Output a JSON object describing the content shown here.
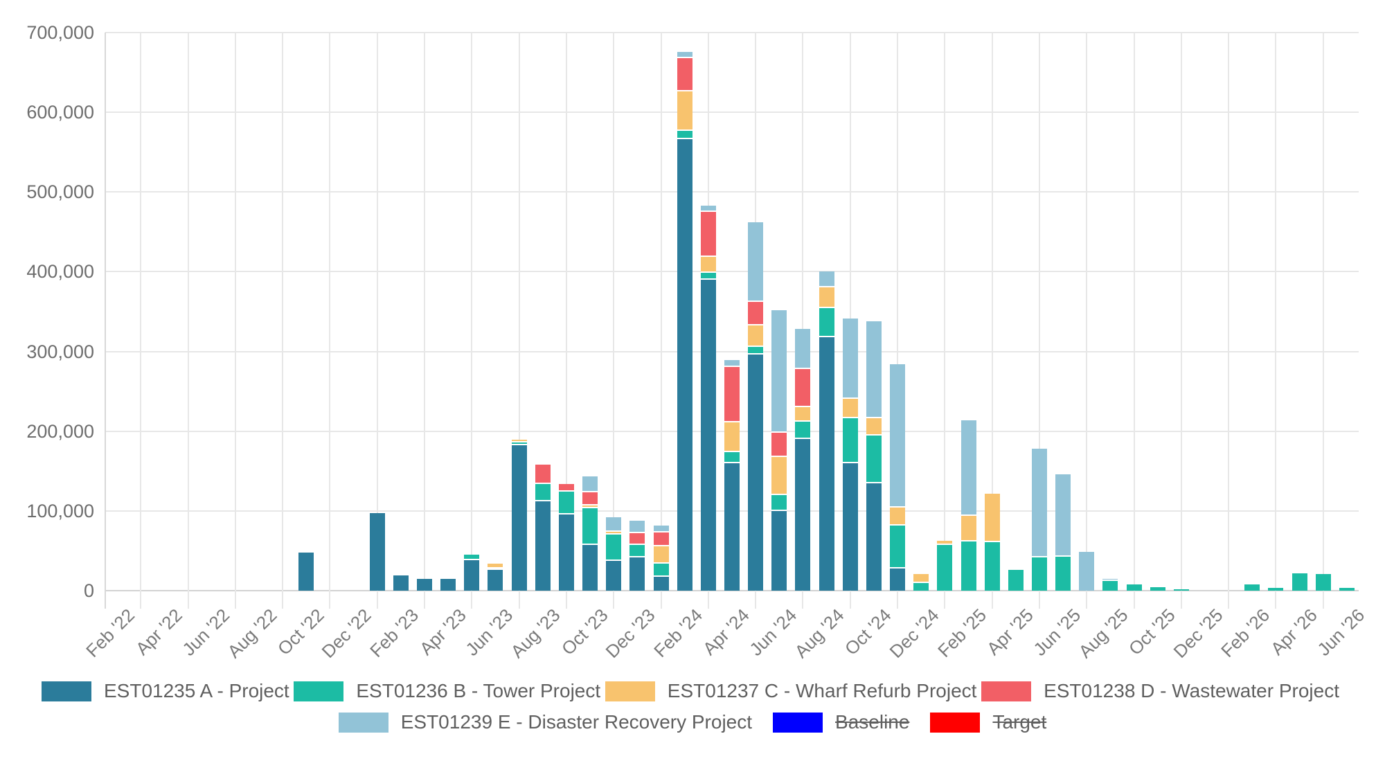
{
  "chart_data": {
    "type": "bar",
    "stacked": true,
    "title": "",
    "xlabel": "",
    "ylabel": "",
    "ylim": [
      0,
      700000
    ],
    "grid": true,
    "legend_position": "bottom",
    "x_label_every": 2,
    "y_tick_labels": [
      "0",
      "100,000",
      "200,000",
      "300,000",
      "400,000",
      "500,000",
      "600,000",
      "700,000"
    ],
    "x": [
      "Feb '22",
      "Mar '22",
      "Apr '22",
      "May '22",
      "Jun '22",
      "Jul '22",
      "Aug '22",
      "Sep '22",
      "Oct '22",
      "Nov '22",
      "Dec '22",
      "Jan '23",
      "Feb '23",
      "Mar '23",
      "Apr '23",
      "May '23",
      "Jun '23",
      "Jul '23",
      "Aug '23",
      "Sep '23",
      "Oct '23",
      "Nov '23",
      "Dec '23",
      "Jan '24",
      "Feb '24",
      "Mar '24",
      "Apr '24",
      "May '24",
      "Jun '24",
      "Jul '24",
      "Aug '24",
      "Sep '24",
      "Oct '24",
      "Nov '24",
      "Dec '24",
      "Jan '25",
      "Feb '25",
      "Mar '25",
      "Apr '25",
      "May '25",
      "Jun '25",
      "Jul '25",
      "Aug '25",
      "Sep '25",
      "Oct '25",
      "Nov '25",
      "Dec '25",
      "Jan '26",
      "Feb '26",
      "Mar '26",
      "Apr '26",
      "May '26",
      "Jun '26"
    ],
    "series": [
      {
        "id": "a",
        "name": "EST01235 A - Project",
        "color": "#2b7c9b",
        "hidden": false,
        "values": [
          0,
          0,
          0,
          0,
          0,
          0,
          0,
          0,
          48000,
          0,
          0,
          97000,
          19000,
          14500,
          14500,
          38000,
          26000,
          182000,
          112000,
          96000,
          57000,
          37000,
          42000,
          17000,
          566000,
          390000,
          160000,
          296000,
          100000,
          190000,
          318000,
          160000,
          135000,
          28000,
          0,
          0,
          0,
          0,
          0,
          0,
          0,
          0,
          0,
          0,
          0,
          0,
          0,
          0,
          0,
          0,
          0,
          0,
          0
        ]
      },
      {
        "id": "b",
        "name": "EST01236 B - Tower Project",
        "color": "#1cbca4",
        "hidden": false,
        "values": [
          0,
          0,
          0,
          0,
          0,
          0,
          0,
          0,
          0,
          0,
          0,
          0,
          0,
          0,
          0,
          7000,
          2000,
          4000,
          22000,
          28000,
          46000,
          33000,
          15000,
          17000,
          11000,
          9000,
          14000,
          10000,
          20000,
          22000,
          36000,
          56000,
          60000,
          54000,
          10000,
          57000,
          62000,
          61000,
          26000,
          42000,
          43000,
          0,
          12000,
          8000,
          4000,
          1500,
          0,
          0,
          8000,
          3500,
          22000,
          21000,
          3500
        ]
      },
      {
        "id": "c",
        "name": "EST01237 C - Wharf Refurb Project",
        "color": "#f8c36e",
        "hidden": false,
        "values": [
          0,
          0,
          0,
          0,
          0,
          0,
          0,
          0,
          0,
          0,
          0,
          0,
          0,
          0,
          0,
          0,
          6000,
          3000,
          0,
          0,
          4000,
          4000,
          0,
          22000,
          49000,
          20000,
          37000,
          27000,
          48000,
          18000,
          26000,
          25000,
          21000,
          22000,
          11000,
          6000,
          32000,
          61000,
          0,
          0,
          0,
          0,
          0,
          0,
          0,
          0,
          0,
          0,
          0,
          0,
          0,
          0,
          0
        ]
      },
      {
        "id": "d",
        "name": "EST01238 D - Wastewater Project",
        "color": "#f25f66",
        "hidden": false,
        "values": [
          0,
          0,
          0,
          0,
          0,
          0,
          0,
          0,
          0,
          0,
          0,
          0,
          0,
          0,
          0,
          0,
          0,
          0,
          24000,
          10000,
          16000,
          0,
          15000,
          17000,
          42000,
          56000,
          70000,
          29000,
          30000,
          48000,
          0,
          0,
          0,
          0,
          0,
          0,
          0,
          0,
          0,
          0,
          0,
          0,
          0,
          0,
          0,
          0,
          0,
          0,
          0,
          0,
          0,
          0,
          0
        ]
      },
      {
        "id": "e",
        "name": "EST01239 E - Disaster Recovery Project",
        "color": "#92c3d7",
        "hidden": false,
        "values": [
          0,
          0,
          0,
          0,
          0,
          0,
          0,
          0,
          0,
          0,
          0,
          0,
          0,
          0,
          0,
          0,
          0,
          0,
          0,
          0,
          20000,
          18000,
          16000,
          9000,
          8000,
          8000,
          8000,
          100000,
          154000,
          50000,
          20000,
          100000,
          122000,
          180000,
          0,
          0,
          120000,
          0,
          0,
          136000,
          103000,
          49000,
          3000,
          0,
          0,
          0,
          0,
          0,
          0,
          0,
          0,
          0,
          0
        ]
      }
    ],
    "overlays": [
      {
        "id": "baseline",
        "name": "Baseline",
        "color": "#0000ff",
        "hidden": true
      },
      {
        "id": "target",
        "name": "Target",
        "color": "#ff0000",
        "hidden": true
      }
    ]
  }
}
